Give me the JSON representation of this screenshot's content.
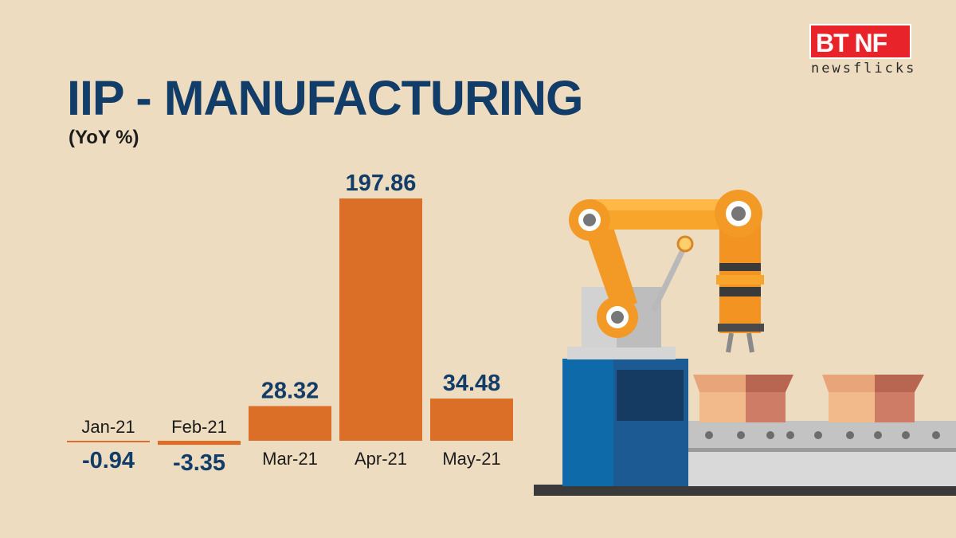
{
  "brand": {
    "logo_text": "BT NF",
    "logo_sub": "newsflicks",
    "logo_color": "#e8232a"
  },
  "header": {
    "title": "IIP - MANUFACTURING",
    "subtitle": "(YoY %)"
  },
  "colors": {
    "background": "#eedcc0",
    "bar": "#dc6f27",
    "value_text": "#123d68"
  },
  "illustration": {
    "icon": "robotic-arm-conveyor-icon"
  },
  "chart_data": {
    "type": "bar",
    "categories": [
      "Jan-21",
      "Feb-21",
      "Mar-21",
      "Apr-21",
      "May-21"
    ],
    "values": [
      -0.94,
      -3.35,
      28.32,
      197.86,
      34.48
    ],
    "value_labels": [
      "-0.94",
      "-3.35",
      "28.32",
      "197.86",
      "34.48"
    ],
    "title": "IIP - MANUFACTURING",
    "subtitle": "(YoY %)",
    "xlabel": "",
    "ylabel": "",
    "ylim": [
      -3.35,
      197.86
    ],
    "grid": false,
    "legend": "none"
  }
}
